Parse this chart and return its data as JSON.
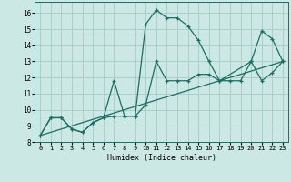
{
  "xlabel": "Humidex (Indice chaleur)",
  "bg_color": "#cce8e4",
  "grid_color": "#aacfca",
  "line_color": "#1a6e63",
  "xlim": [
    -0.5,
    23.5
  ],
  "ylim": [
    8.0,
    16.7
  ],
  "xticks": [
    0,
    1,
    2,
    3,
    4,
    5,
    6,
    7,
    8,
    9,
    10,
    11,
    12,
    13,
    14,
    15,
    16,
    17,
    18,
    19,
    20,
    21,
    22,
    23
  ],
  "yticks": [
    8,
    9,
    10,
    11,
    12,
    13,
    14,
    15,
    16
  ],
  "series_main": {
    "x": [
      0,
      1,
      2,
      3,
      4,
      5,
      6,
      7,
      8,
      9,
      10,
      11,
      12,
      13,
      14,
      15,
      16,
      17,
      20,
      21,
      22,
      23
    ],
    "y": [
      8.4,
      9.5,
      9.5,
      8.8,
      8.6,
      9.2,
      9.5,
      11.8,
      9.6,
      9.6,
      15.3,
      16.2,
      15.7,
      15.7,
      15.2,
      14.3,
      13.0,
      11.8,
      13.0,
      14.9,
      14.4,
      13.0
    ]
  },
  "series_smooth": {
    "x": [
      0,
      1,
      2,
      3,
      4,
      5,
      6,
      7,
      8,
      9,
      10,
      11,
      12,
      13,
      14,
      15,
      16,
      17,
      18,
      19,
      20,
      21,
      22,
      23
    ],
    "y": [
      8.4,
      9.5,
      9.5,
      8.8,
      8.6,
      9.2,
      9.5,
      9.6,
      9.6,
      9.6,
      10.3,
      13.0,
      11.8,
      11.8,
      11.8,
      12.2,
      12.2,
      11.8,
      11.8,
      11.8,
      13.0,
      11.8,
      12.3,
      13.0
    ]
  },
  "series_linear": {
    "x": [
      0,
      23
    ],
    "y": [
      8.4,
      13.0
    ]
  }
}
